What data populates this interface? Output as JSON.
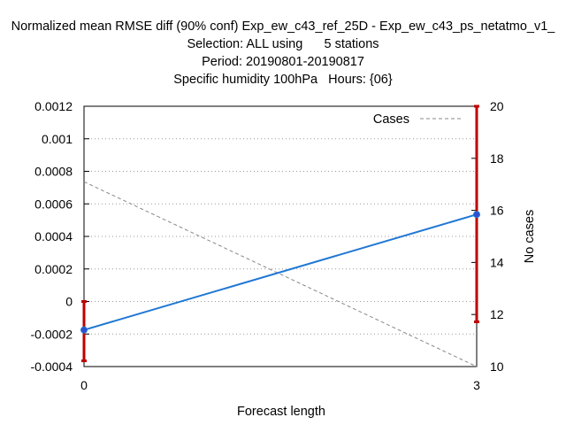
{
  "title": {
    "line1": "Normalized mean RMSE diff (90% conf) Exp_ew_c43_ref_25D - Exp_ew_c43_ps_netatmo_v1_",
    "line2": "Selection: ALL using      5 stations",
    "line3": "Period: 20190801-20190817",
    "line4": "Specific humidity 100hPa   Hours: {06}"
  },
  "chart_data": {
    "type": "line",
    "xlabel": "Forecast length",
    "ylabel": "",
    "y2label": "No cases",
    "x_ticks": [
      "0",
      "3"
    ],
    "xlim": [
      0,
      3
    ],
    "ylim": [
      -0.0004,
      0.0012
    ],
    "y_ticks": [
      "0.0012",
      "0.001",
      "0.0008",
      "0.0006",
      "0.0004",
      "0.0002",
      "0",
      "-0.0002",
      "-0.0004"
    ],
    "y2lim": [
      10,
      20
    ],
    "y2_ticks": [
      "20",
      "18",
      "16",
      "14",
      "12",
      "10"
    ],
    "grid": true,
    "legend": {
      "position": "top-right",
      "entries": [
        "Cases"
      ]
    },
    "series": [
      {
        "values_x": [
          0,
          3
        ],
        "values_y": [
          -0.000175,
          0.000535
        ],
        "color": "#1f77d4",
        "error_low": [
          -0.000365,
          -0.000125
        ],
        "error_high": [
          0.0,
          0.0012
        ],
        "error_color": "#c00000"
      },
      {
        "name": "Cases",
        "axis": "y2",
        "values_x": [
          0,
          3
        ],
        "values_y": [
          17.1,
          10.0
        ],
        "color": "#888888",
        "dash": true
      }
    ]
  }
}
